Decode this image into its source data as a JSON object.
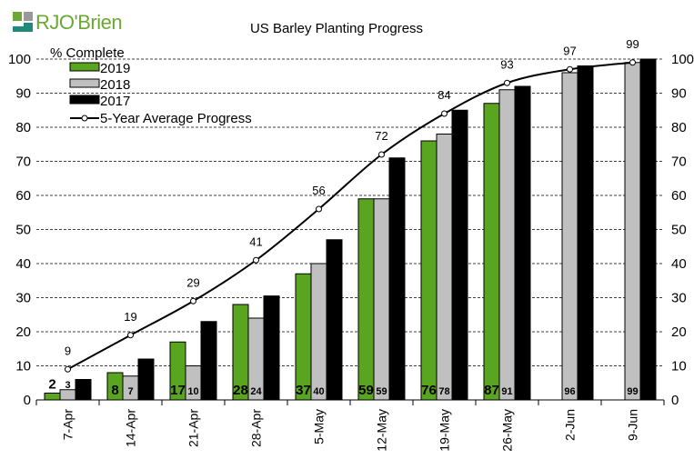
{
  "logo": {
    "text": "RJO'Brien"
  },
  "colors": {
    "y2019": "#5aa51f",
    "y2018": "#c0c0c0",
    "y2017": "#000000",
    "avg": "#000000",
    "logo_green": "#6aa833",
    "logo_teal": "#1e8a7a",
    "logo_gray": "#888888"
  },
  "chart_data": {
    "type": "bar",
    "title": "US Barley Planting Progress",
    "ylabel": "% Complete",
    "xlabel": "",
    "ylim": [
      0,
      100
    ],
    "yticks": [
      0,
      10,
      20,
      30,
      40,
      50,
      60,
      70,
      80,
      90,
      100
    ],
    "grid": true,
    "legend_position": "top-left",
    "categories": [
      "7-Apr",
      "14-Apr",
      "21-Apr",
      "28-Apr",
      "5-May",
      "12-May",
      "19-May",
      "26-May",
      "2-Jun",
      "9-Jun"
    ],
    "series": [
      {
        "name": "2019",
        "type": "bar",
        "values": [
          2,
          8,
          17,
          28,
          37,
          59,
          76,
          87,
          null,
          null
        ]
      },
      {
        "name": "2018",
        "type": "bar",
        "values": [
          3,
          7,
          10,
          24,
          40,
          59,
          78,
          91,
          96,
          99
        ]
      },
      {
        "name": "2017",
        "type": "bar",
        "values": [
          6,
          12,
          23,
          30.5,
          47,
          71,
          85,
          92,
          98,
          100
        ]
      },
      {
        "name": "5-Year Average Progress",
        "type": "line",
        "values": [
          9,
          19,
          29,
          41,
          56,
          72,
          84,
          93,
          97,
          99
        ]
      }
    ]
  }
}
